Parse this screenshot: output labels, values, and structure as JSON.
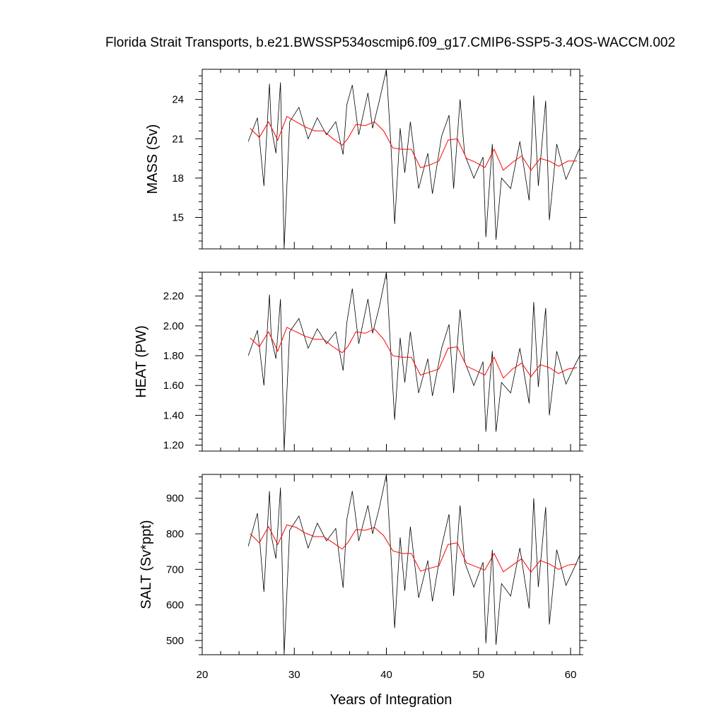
{
  "title": "Florida Strait Transports, b.e21.BWSSP534oscmip6.f09_g17.CMIP6-SSP5-3.4OS-WACCM.002",
  "xlabel": "Years of Integration",
  "colors": {
    "monthly": "#000000",
    "annual_mean": "#ff0000"
  },
  "chart_data": [
    {
      "type": "line",
      "panel": "mass",
      "ylabel": "MASS (Sv)",
      "xlim": [
        20,
        61
      ],
      "ylim": [
        12.6,
        26.3
      ],
      "x_ticks": [
        20,
        30,
        40,
        50,
        60
      ],
      "y_ticks": [
        15,
        18,
        21,
        24
      ],
      "y_tick_labels": [
        "15",
        "18",
        "21",
        "24"
      ],
      "series": [
        {
          "role": "monthly",
          "x": [
            25.0,
            26.0,
            26.7,
            27.3,
            27.5,
            28.0,
            28.5,
            28.9,
            29.5,
            30.5,
            31.5,
            32.5,
            33.5,
            34.5,
            35.3,
            35.7,
            36.3,
            37.0,
            38.0,
            38.5,
            39.2,
            40.0,
            40.5,
            40.9,
            41.5,
            42.0,
            42.6,
            43.5,
            44.5,
            45.0,
            46.0,
            46.8,
            47.3,
            48.0,
            48.5,
            49.5,
            50.5,
            50.8,
            51.5,
            51.9,
            52.5,
            53.5,
            54.5,
            55.5,
            56.0,
            56.5,
            57.3,
            57.7,
            58.5,
            59.5,
            60.5,
            61.0
          ],
          "y": [
            20.8,
            22.6,
            17.4,
            25.2,
            21.9,
            19.9,
            25.3,
            12.6,
            22.3,
            23.4,
            21.0,
            22.6,
            21.3,
            22.3,
            19.8,
            23.6,
            25.1,
            21.3,
            24.5,
            21.8,
            23.8,
            26.3,
            20.4,
            14.5,
            21.8,
            18.4,
            22.3,
            17.2,
            19.9,
            16.8,
            21.2,
            22.8,
            17.2,
            24.0,
            19.8,
            18.0,
            19.6,
            13.5,
            20.6,
            13.3,
            18.0,
            17.2,
            20.8,
            16.3,
            24.3,
            17.4,
            23.9,
            14.8,
            20.6,
            17.9,
            19.5,
            20.3
          ]
        },
        {
          "role": "annual_mean",
          "x": [
            25.2,
            26.2,
            27.2,
            28.2,
            29.2,
            30.2,
            31.2,
            32.2,
            33.2,
            34.2,
            35.2,
            35.8,
            36.7,
            37.7,
            38.7,
            39.7,
            40.7,
            41.7,
            42.7,
            43.7,
            44.7,
            45.7,
            46.7,
            47.7,
            48.7,
            49.7,
            50.7,
            51.7,
            52.7,
            53.7,
            54.7,
            55.7,
            56.7,
            57.7,
            58.7,
            59.7,
            60.7
          ],
          "y": [
            21.8,
            21.1,
            22.3,
            20.9,
            22.7,
            22.3,
            21.9,
            21.6,
            21.6,
            21.0,
            20.5,
            21.0,
            22.1,
            22.0,
            22.3,
            21.6,
            20.3,
            20.2,
            20.2,
            18.8,
            19.0,
            19.3,
            20.9,
            21.0,
            19.5,
            19.2,
            18.8,
            20.2,
            18.6,
            19.2,
            19.7,
            18.6,
            19.5,
            19.3,
            18.9,
            19.3,
            19.3
          ]
        }
      ]
    },
    {
      "type": "line",
      "panel": "heat",
      "ylabel": "HEAT (PW)",
      "xlim": [
        20,
        61
      ],
      "ylim": [
        1.16,
        2.36
      ],
      "x_ticks": [
        20,
        30,
        40,
        50,
        60
      ],
      "y_ticks": [
        1.2,
        1.4,
        1.6,
        1.8,
        2.0,
        2.2
      ],
      "y_tick_labels": [
        "1.20",
        "1.40",
        "1.60",
        "1.80",
        "2.00",
        "2.20"
      ],
      "series": [
        {
          "role": "monthly",
          "x": [
            25.0,
            26.0,
            26.7,
            27.3,
            27.5,
            28.0,
            28.5,
            28.9,
            29.5,
            30.5,
            31.5,
            32.5,
            33.5,
            34.5,
            35.3,
            35.7,
            36.3,
            37.0,
            38.0,
            38.5,
            39.2,
            40.0,
            40.5,
            40.9,
            41.5,
            42.0,
            42.6,
            43.5,
            44.5,
            45.0,
            46.0,
            46.8,
            47.3,
            48.0,
            48.5,
            49.5,
            50.5,
            50.8,
            51.5,
            51.9,
            52.5,
            53.5,
            54.5,
            55.5,
            56.0,
            56.5,
            57.3,
            57.7,
            58.5,
            59.5,
            60.5,
            61.0
          ],
          "y": [
            1.8,
            1.97,
            1.6,
            2.21,
            1.92,
            1.78,
            2.18,
            1.16,
            1.96,
            2.05,
            1.85,
            1.98,
            1.88,
            1.96,
            1.7,
            2.02,
            2.25,
            1.88,
            2.18,
            1.95,
            2.12,
            2.36,
            1.8,
            1.37,
            1.92,
            1.62,
            1.96,
            1.55,
            1.78,
            1.53,
            1.85,
            2.01,
            1.55,
            2.11,
            1.76,
            1.6,
            1.76,
            1.29,
            1.83,
            1.29,
            1.62,
            1.55,
            1.85,
            1.48,
            2.16,
            1.59,
            2.12,
            1.4,
            1.83,
            1.61,
            1.74,
            1.8
          ]
        },
        {
          "role": "annual_mean",
          "x": [
            25.2,
            26.2,
            27.2,
            28.2,
            29.2,
            30.2,
            31.2,
            32.2,
            33.2,
            34.2,
            35.2,
            35.8,
            36.7,
            37.7,
            38.7,
            39.7,
            40.7,
            41.7,
            42.7,
            43.7,
            44.7,
            45.7,
            46.7,
            47.7,
            48.7,
            49.7,
            50.7,
            51.7,
            52.7,
            53.7,
            54.7,
            55.7,
            56.7,
            57.7,
            58.7,
            59.7,
            60.7
          ],
          "y": [
            1.92,
            1.86,
            1.96,
            1.83,
            1.99,
            1.96,
            1.93,
            1.91,
            1.91,
            1.86,
            1.82,
            1.86,
            1.96,
            1.95,
            1.98,
            1.91,
            1.8,
            1.79,
            1.79,
            1.67,
            1.69,
            1.71,
            1.85,
            1.86,
            1.73,
            1.7,
            1.67,
            1.79,
            1.65,
            1.71,
            1.75,
            1.66,
            1.74,
            1.72,
            1.68,
            1.71,
            1.72
          ]
        }
      ]
    },
    {
      "type": "line",
      "panel": "salt",
      "ylabel": "SALT (Sv*ppt)",
      "xlim": [
        20,
        61
      ],
      "ylim": [
        460,
        967
      ],
      "x_ticks": [
        20,
        30,
        40,
        50,
        60
      ],
      "x_tick_labels": [
        "20",
        "30",
        "40",
        "50",
        "60"
      ],
      "y_ticks": [
        500,
        600,
        700,
        800,
        900
      ],
      "y_tick_labels": [
        "500",
        "600",
        "700",
        "800",
        "900"
      ],
      "series": [
        {
          "role": "monthly",
          "x": [
            25.0,
            26.0,
            26.7,
            27.3,
            27.5,
            28.0,
            28.5,
            28.9,
            29.5,
            30.5,
            31.5,
            32.5,
            33.5,
            34.5,
            35.3,
            35.7,
            36.3,
            37.0,
            38.0,
            38.5,
            39.2,
            40.0,
            40.5,
            40.9,
            41.5,
            42.0,
            42.6,
            43.5,
            44.5,
            45.0,
            46.0,
            46.8,
            47.3,
            48.0,
            48.5,
            49.5,
            50.5,
            50.8,
            51.5,
            51.9,
            52.5,
            53.5,
            54.5,
            55.5,
            56.0,
            56.5,
            57.3,
            57.7,
            58.5,
            59.5,
            60.5,
            61.0
          ],
          "y": [
            765,
            858,
            637,
            920,
            795,
            730,
            930,
            460,
            810,
            850,
            760,
            830,
            780,
            815,
            648,
            840,
            920,
            780,
            880,
            800,
            870,
            967,
            740,
            535,
            790,
            640,
            820,
            620,
            725,
            610,
            765,
            855,
            625,
            880,
            720,
            650,
            720,
            492,
            755,
            488,
            660,
            625,
            760,
            590,
            900,
            650,
            875,
            545,
            755,
            655,
            710,
            740
          ]
        },
        {
          "role": "annual_mean",
          "x": [
            25.2,
            26.2,
            27.2,
            28.2,
            29.2,
            30.2,
            31.2,
            32.2,
            33.2,
            34.2,
            35.2,
            35.8,
            36.7,
            37.7,
            38.7,
            39.7,
            40.7,
            41.7,
            42.7,
            43.7,
            44.7,
            45.7,
            46.7,
            47.7,
            48.7,
            49.7,
            50.7,
            51.7,
            52.7,
            53.7,
            54.7,
            55.7,
            56.7,
            57.7,
            58.7,
            59.7,
            60.7
          ],
          "y": [
            800,
            775,
            820,
            770,
            825,
            818,
            802,
            792,
            792,
            775,
            757,
            775,
            812,
            810,
            818,
            795,
            752,
            745,
            745,
            695,
            703,
            710,
            770,
            775,
            718,
            708,
            698,
            745,
            693,
            712,
            730,
            692,
            725,
            715,
            700,
            712,
            715
          ]
        }
      ]
    }
  ]
}
